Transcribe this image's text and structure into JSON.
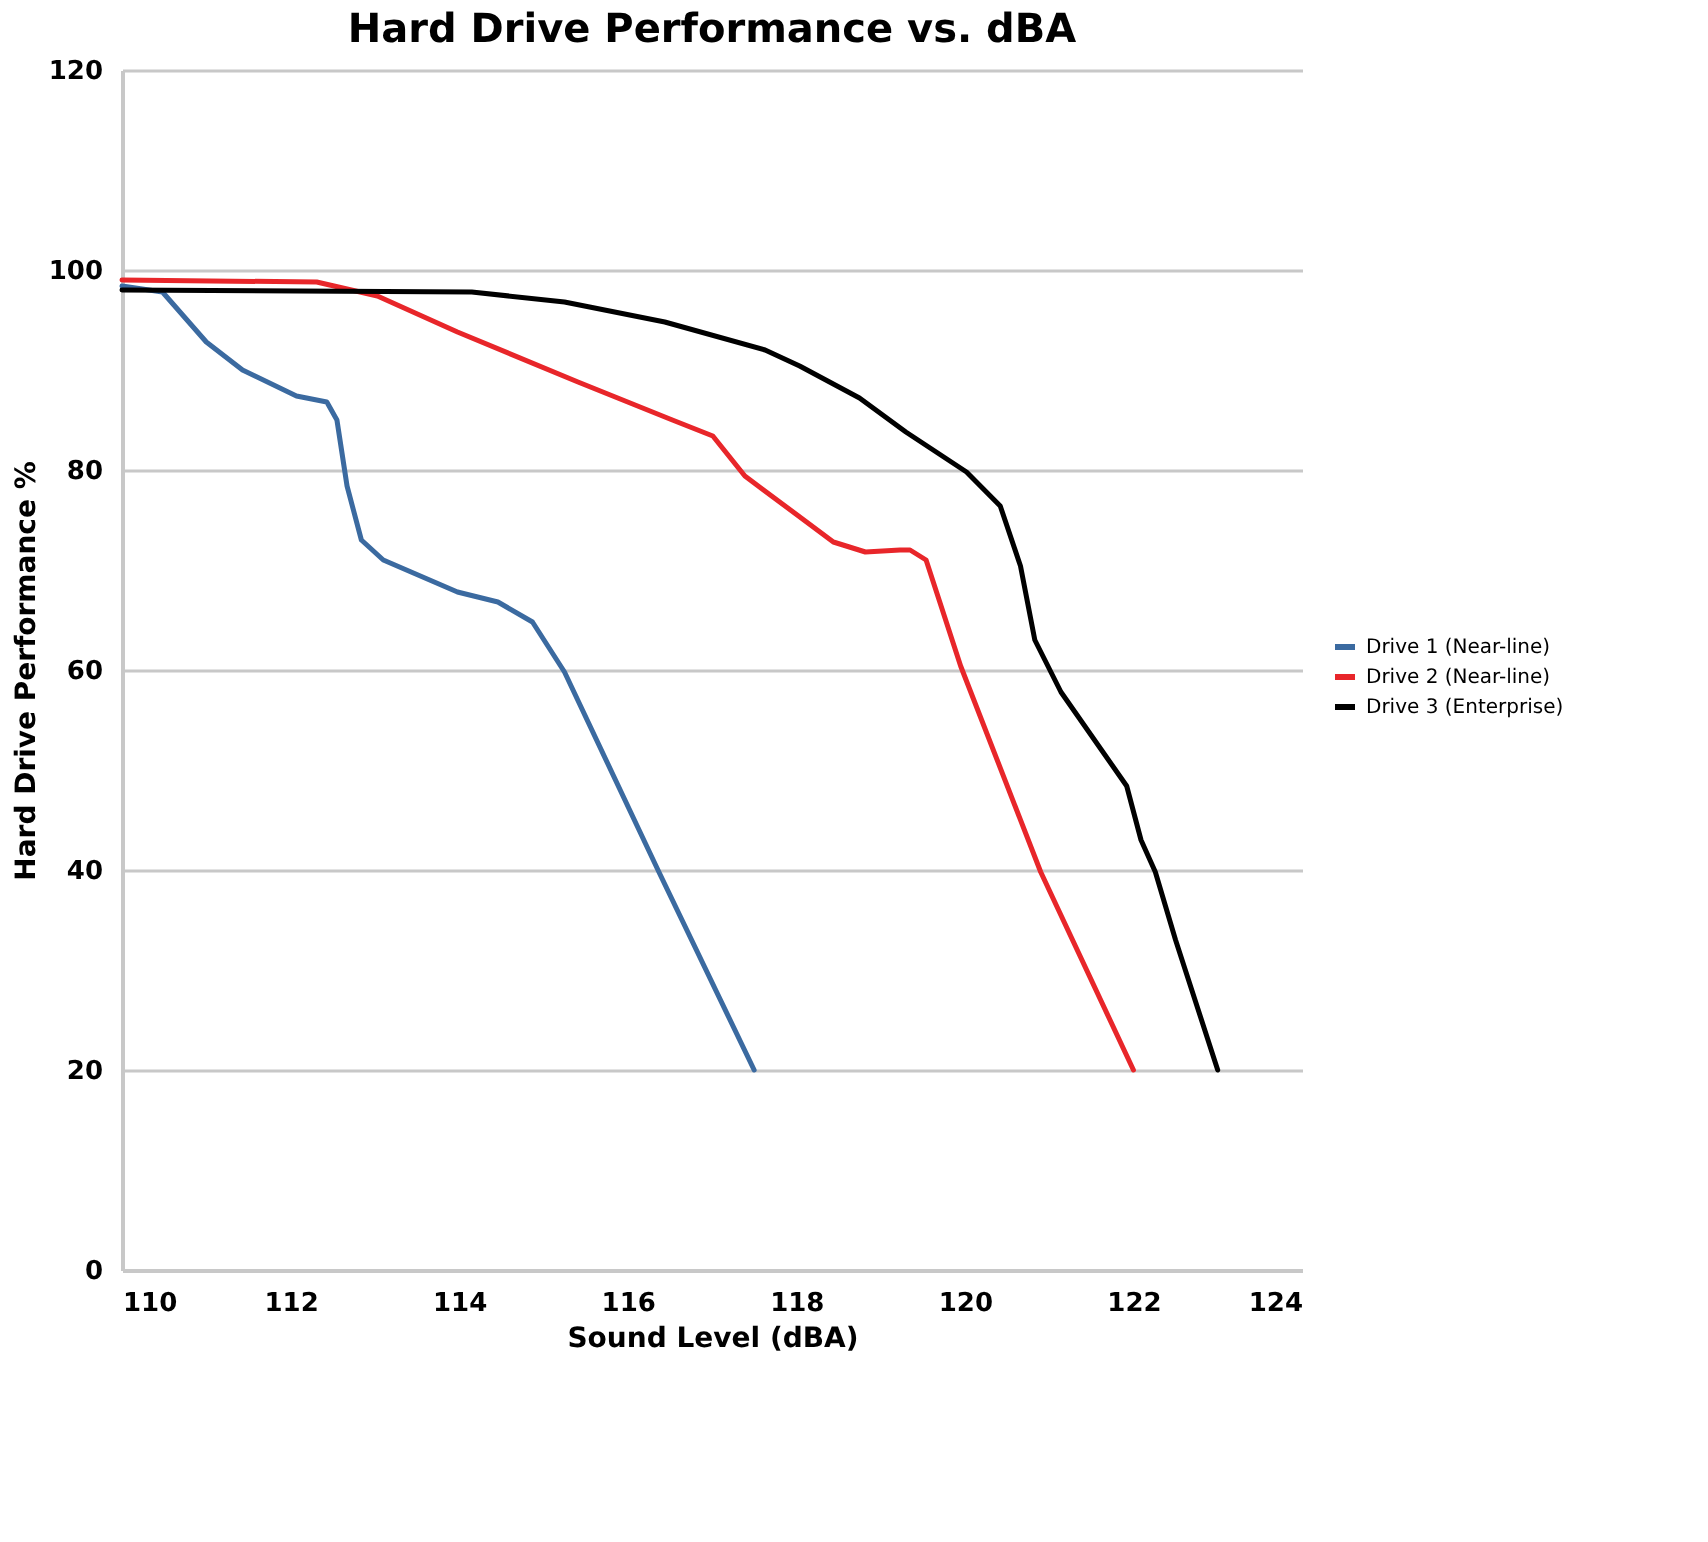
{
  "chart_data": {
    "type": "line",
    "title": "Hard Drive Performance vs. dBA",
    "xlabel": "Sound Level (dBA)",
    "ylabel": "Hard Drive Performance %",
    "xlim": [
      110,
      124
    ],
    "xticks": [
      110,
      112,
      114,
      116,
      118,
      120,
      122,
      124
    ],
    "ylim": [
      0,
      120
    ],
    "yticks": [
      0,
      20,
      40,
      60,
      80,
      100,
      120
    ],
    "grid": "y",
    "legend": "right",
    "marker": "none",
    "line_style": "solid",
    "series": [
      {
        "name": "Drive 1 (Near-line)",
        "color": "#3b6aa0",
        "x": [
          110.0,
          110.48,
          111.0,
          111.43,
          112.07,
          112.43,
          112.55,
          112.67,
          112.84,
          113.1,
          113.98,
          114.46,
          114.87,
          115.25,
          116.37,
          117.5
        ],
        "values": [
          98.4,
          97.8,
          92.8,
          90,
          87.4,
          86.8,
          85,
          78.4,
          73,
          71,
          67.8,
          66.8,
          64.8,
          59.8,
          39.8,
          20
        ]
      },
      {
        "name": "Drive 2 (Near-line)",
        "color": "#e8262a",
        "x": [
          110.0,
          112.31,
          113.03,
          113.98,
          115.41,
          116.53,
          117.01,
          117.39,
          118.44,
          118.82,
          119.23,
          119.35,
          119.54,
          119.95,
          120.9,
          122.0
        ],
        "values": [
          99,
          98.8,
          97.4,
          93.8,
          88.8,
          85,
          83.4,
          79.4,
          72.8,
          71.8,
          72,
          72,
          71,
          60.4,
          39.8,
          20
        ]
      },
      {
        "name": "Drive 3 (Enterprise)",
        "color": "#000000",
        "x": [
          110.0,
          114.15,
          115.25,
          116.44,
          117.63,
          118.04,
          118.75,
          119.3,
          120.02,
          120.42,
          120.66,
          120.83,
          121.14,
          121.92,
          122.09,
          122.26,
          122.5,
          123.0
        ],
        "values": [
          98,
          97.8,
          96.8,
          94.8,
          92,
          90.4,
          87.2,
          83.8,
          79.8,
          76.4,
          70.4,
          63,
          57.8,
          48.4,
          43,
          39.8,
          33,
          20
        ]
      }
    ]
  }
}
